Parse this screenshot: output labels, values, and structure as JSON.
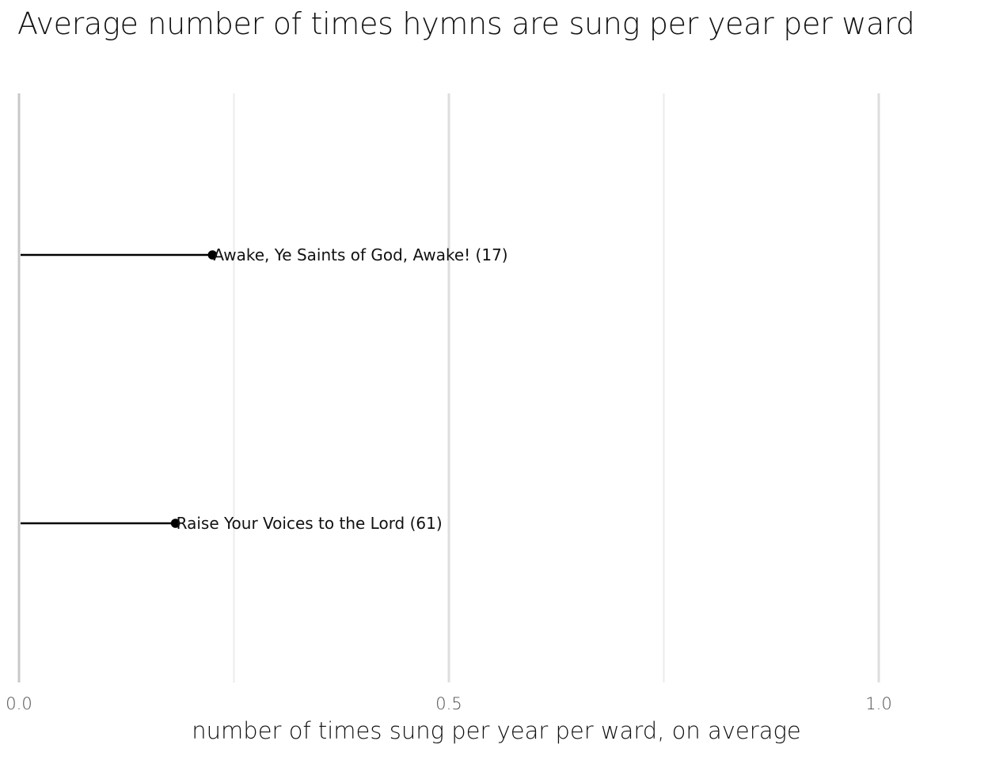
{
  "chart_data": {
    "type": "lollipop",
    "title": "Average number of times hymns are sung per year per ward",
    "xlabel": "number of times sung per year per ward, on average",
    "ylabel": "",
    "xlim": [
      0,
      1.1
    ],
    "x_ticks": [
      {
        "value": 0.0,
        "label": "0.0"
      },
      {
        "value": 0.5,
        "label": "0.5"
      },
      {
        "value": 1.0,
        "label": "1.0"
      }
    ],
    "minor_grid": [
      0.25,
      0.75
    ],
    "grid": true,
    "legend": "none",
    "points": [
      {
        "label": "Awake, Ye Saints of God, Awake! (17)",
        "value": 0.225
      },
      {
        "label": "Raise Your Voices to the Lord (61)",
        "value": 0.182
      }
    ],
    "colors": {
      "mark": "#000000",
      "major_grid": "#dedede",
      "minor_grid": "#ebebeb",
      "baseline": "#c8c8c8"
    }
  }
}
